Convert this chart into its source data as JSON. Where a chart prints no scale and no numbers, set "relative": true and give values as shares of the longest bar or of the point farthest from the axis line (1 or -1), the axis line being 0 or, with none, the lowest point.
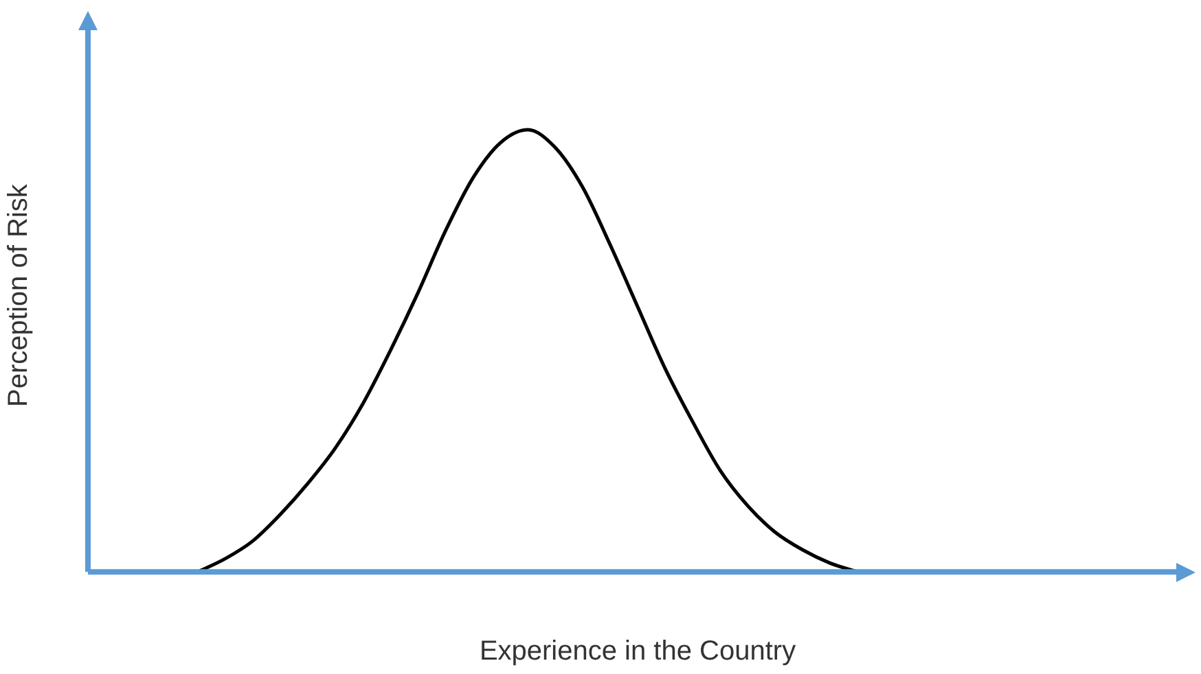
{
  "chart_data": {
    "type": "line",
    "relative": true,
    "xlabel": "Experience in the Country",
    "ylabel": "Perception of Risk",
    "marker": "none",
    "line_style": "solid",
    "categories": [
      null,
      null,
      null,
      null,
      null,
      null,
      null,
      null,
      null,
      null,
      null,
      null,
      null,
      null,
      null,
      null,
      null,
      null,
      null,
      null,
      null,
      null,
      null,
      null,
      null,
      null,
      null,
      null,
      null,
      null,
      null,
      null,
      null,
      null,
      null,
      null,
      null,
      null,
      null,
      null,
      null
    ],
    "series": [
      {
        "color": "#000000",
        "values": [
          null,
          null,
          null,
          null,
          0,
          0.03,
          0.07,
          0.13,
          0.2,
          0.28,
          0.38,
          0.5,
          0.63,
          0.77,
          0.89,
          0.97,
          1,
          0.96,
          0.87,
          0.74,
          0.6,
          0.46,
          0.34,
          0.23,
          0.15,
          0.09,
          0.05,
          0.02,
          0,
          null,
          null,
          null,
          null,
          null,
          null,
          null,
          null,
          null,
          null,
          null,
          null
        ]
      }
    ]
  }
}
